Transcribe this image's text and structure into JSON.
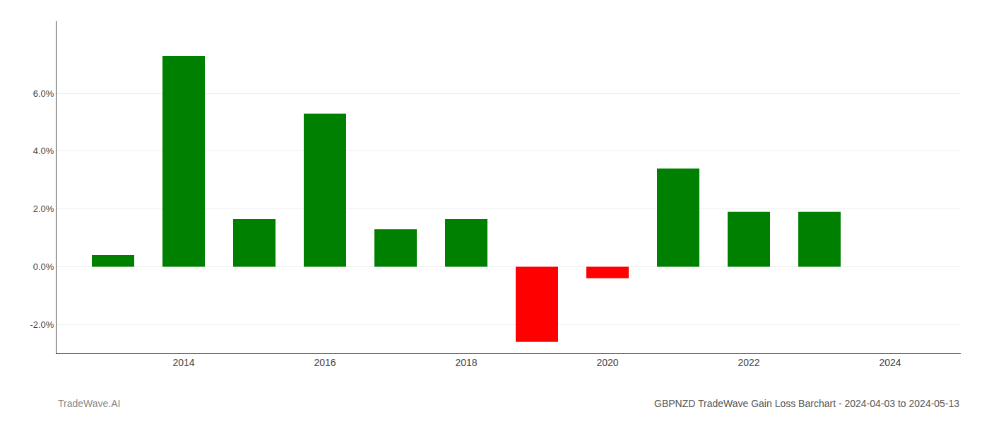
{
  "chart_data": {
    "type": "bar",
    "title": "GBPNZD TradeWave Gain Loss Barchart - 2024-04-03 to 2024-05-13",
    "annotations": [
      "TradeWave.AI"
    ],
    "x": [
      2013,
      2014,
      2015,
      2016,
      2017,
      2018,
      2019,
      2020,
      2021,
      2022,
      2023
    ],
    "values": [
      0.004,
      0.073,
      0.0165,
      0.053,
      0.013,
      0.0165,
      -0.026,
      -0.004,
      0.034,
      0.019,
      0.019
    ],
    "colors": [
      "#008000",
      "#008000",
      "#008000",
      "#008000",
      "#008000",
      "#008000",
      "#ff0000",
      "#ff0000",
      "#008000",
      "#008000",
      "#008000"
    ],
    "xlim": [
      2012.2,
      2025.0
    ],
    "xticks": [
      2014,
      2016,
      2018,
      2020,
      2022,
      2024
    ],
    "ylim": [
      -0.03,
      0.085
    ],
    "yticks": [
      {
        "value": -0.02,
        "label": "-2.0%"
      },
      {
        "value": 0.0,
        "label": "0.0%"
      },
      {
        "value": 0.02,
        "label": "2.0%"
      },
      {
        "value": 0.04,
        "label": "4.0%"
      },
      {
        "value": 0.06,
        "label": "6.0%"
      }
    ],
    "grid": true
  }
}
